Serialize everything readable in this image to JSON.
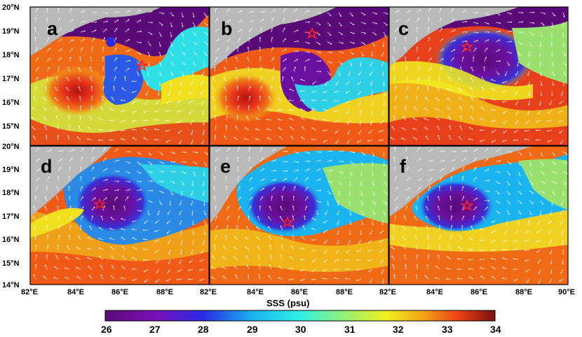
{
  "panel_labels": [
    "a",
    "b",
    "c",
    "d",
    "e",
    "f"
  ],
  "lat_labels": [
    "20°N",
    "19°N",
    "18°N",
    "17°N",
    "16°N",
    "15°N",
    "14°N"
  ],
  "lon_labels": [
    "82°E",
    "84°E",
    "86°E",
    "88°E",
    "82°E",
    "84°E",
    "86°E",
    "88°E",
    "82°E",
    "84°E",
    "86°E",
    "88°E",
    "90°E"
  ],
  "x_axis_title": "SSS (psu)",
  "colorbar": {
    "ticks": [
      "26",
      "27",
      "28",
      "29",
      "30",
      "31",
      "32",
      "33",
      "34"
    ],
    "min": 26,
    "max": 34,
    "colors": [
      "#5a0a78",
      "#7a10b8",
      "#2a2ae6",
      "#1ab4f0",
      "#2ef0e6",
      "#9af06e",
      "#f0f01e",
      "#f0a014",
      "#f04614",
      "#c81414",
      "#781010"
    ]
  },
  "land_color": "#b9b9b9",
  "marker": "red-star"
}
